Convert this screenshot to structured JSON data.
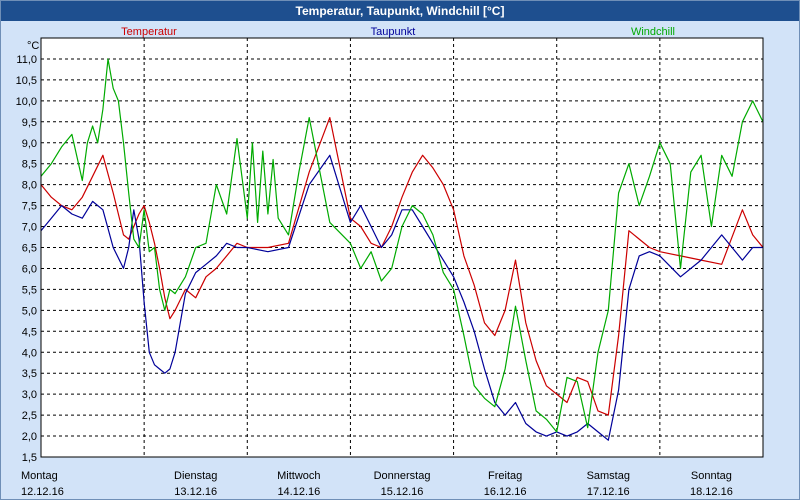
{
  "window": {
    "title": "Temperatur, Taupunkt, Windchill [°C]"
  },
  "chart_data": {
    "type": "line",
    "title": "Temperatur, Taupunkt, Windchill [°C]",
    "ylabel": "°C",
    "xlabel": "",
    "ylim": [
      1.5,
      11.5
    ],
    "xlim": [
      0,
      7
    ],
    "grid": true,
    "legend_placement": "top",
    "y_ticks": [
      "1,5",
      "2,0",
      "2,5",
      "3,0",
      "3,5",
      "4,0",
      "4,5",
      "5,0",
      "5,5",
      "6,0",
      "6,5",
      "7,0",
      "7,5",
      "8,0",
      "8,5",
      "9,0",
      "9,5",
      "10,0",
      "10,5",
      "11,0"
    ],
    "x_days": [
      {
        "day": "Montag",
        "date": "12.12.16"
      },
      {
        "day": "Dienstag",
        "date": "13.12.16"
      },
      {
        "day": "Mittwoch",
        "date": "14.12.16"
      },
      {
        "day": "Donnerstag",
        "date": "15.12.16"
      },
      {
        "day": "Freitag",
        "date": "16.12.16"
      },
      {
        "day": "Samstag",
        "date": "17.12.16"
      },
      {
        "day": "Sonntag",
        "date": "18.12.16"
      }
    ],
    "series": [
      {
        "name": "Temperatur",
        "color": "#cc0000",
        "x": [
          0,
          0.1,
          0.2,
          0.3,
          0.4,
          0.5,
          0.6,
          0.7,
          0.8,
          0.85,
          0.9,
          0.95,
          1.0,
          1.05,
          1.1,
          1.15,
          1.2,
          1.25,
          1.3,
          1.4,
          1.5,
          1.6,
          1.7,
          1.8,
          1.9,
          2.0,
          2.2,
          2.4,
          2.6,
          2.8,
          3.0,
          3.1,
          3.2,
          3.3,
          3.4,
          3.5,
          3.6,
          3.7,
          3.8,
          3.9,
          4.0,
          4.1,
          4.2,
          4.3,
          4.4,
          4.5,
          4.6,
          4.7,
          4.8,
          4.9,
          5.0,
          5.1,
          5.2,
          5.3,
          5.4,
          5.5,
          5.6,
          5.7,
          5.8,
          5.9,
          6.0,
          6.2,
          6.4,
          6.6,
          6.8,
          6.9,
          7.0
        ],
        "values": [
          8.0,
          7.7,
          7.5,
          7.4,
          7.7,
          8.2,
          8.7,
          7.8,
          6.8,
          6.7,
          7.0,
          7.3,
          7.5,
          7.1,
          6.6,
          6.0,
          5.3,
          4.8,
          5.0,
          5.5,
          5.3,
          5.8,
          6.0,
          6.3,
          6.6,
          6.5,
          6.5,
          6.6,
          8.3,
          9.6,
          7.2,
          7.0,
          6.6,
          6.5,
          7.0,
          7.7,
          8.3,
          8.7,
          8.4,
          8.0,
          7.4,
          6.3,
          5.6,
          4.7,
          4.4,
          5.0,
          6.2,
          4.7,
          3.8,
          3.2,
          3.0,
          2.8,
          3.4,
          3.3,
          2.6,
          2.5,
          4.4,
          6.9,
          6.7,
          6.5,
          6.4,
          6.3,
          6.2,
          6.1,
          7.4,
          6.8,
          6.5
        ]
      },
      {
        "name": "Taupunkt",
        "color": "#000099",
        "x": [
          0,
          0.1,
          0.2,
          0.3,
          0.4,
          0.5,
          0.6,
          0.7,
          0.8,
          0.85,
          0.9,
          0.95,
          1.0,
          1.05,
          1.1,
          1.15,
          1.2,
          1.25,
          1.3,
          1.4,
          1.5,
          1.6,
          1.7,
          1.8,
          1.9,
          2.0,
          2.2,
          2.4,
          2.6,
          2.8,
          3.0,
          3.1,
          3.2,
          3.3,
          3.4,
          3.5,
          3.6,
          3.7,
          3.8,
          3.9,
          4.0,
          4.1,
          4.2,
          4.3,
          4.4,
          4.5,
          4.6,
          4.7,
          4.8,
          4.9,
          5.0,
          5.1,
          5.2,
          5.3,
          5.4,
          5.5,
          5.6,
          5.7,
          5.8,
          5.9,
          6.0,
          6.2,
          6.4,
          6.6,
          6.8,
          6.9,
          7.0
        ],
        "values": [
          6.9,
          7.2,
          7.5,
          7.3,
          7.2,
          7.6,
          7.4,
          6.5,
          6.0,
          6.5,
          7.4,
          6.7,
          5.2,
          4.0,
          3.7,
          3.6,
          3.5,
          3.6,
          4.0,
          5.4,
          5.9,
          6.1,
          6.3,
          6.6,
          6.5,
          6.5,
          6.4,
          6.5,
          8.0,
          8.7,
          7.1,
          7.5,
          7.0,
          6.5,
          6.8,
          7.4,
          7.4,
          7.0,
          6.6,
          6.2,
          5.8,
          5.2,
          4.5,
          3.6,
          2.8,
          2.5,
          2.8,
          2.3,
          2.1,
          2.0,
          2.1,
          2.0,
          2.1,
          2.3,
          2.1,
          1.9,
          3.1,
          5.5,
          6.3,
          6.4,
          6.3,
          5.8,
          6.2,
          6.8,
          6.2,
          6.5,
          6.5
        ]
      },
      {
        "name": "Windchill",
        "color": "#00aa00",
        "x": [
          0,
          0.1,
          0.2,
          0.3,
          0.4,
          0.45,
          0.5,
          0.55,
          0.6,
          0.65,
          0.7,
          0.75,
          0.8,
          0.85,
          0.9,
          0.95,
          1.0,
          1.05,
          1.1,
          1.15,
          1.2,
          1.25,
          1.3,
          1.4,
          1.5,
          1.6,
          1.7,
          1.8,
          1.9,
          2.0,
          2.05,
          2.1,
          2.15,
          2.2,
          2.25,
          2.3,
          2.4,
          2.5,
          2.6,
          2.8,
          3.0,
          3.1,
          3.2,
          3.3,
          3.4,
          3.5,
          3.6,
          3.7,
          3.8,
          3.9,
          4.0,
          4.1,
          4.2,
          4.3,
          4.4,
          4.5,
          4.6,
          4.7,
          4.8,
          4.9,
          5.0,
          5.1,
          5.2,
          5.3,
          5.4,
          5.5,
          5.6,
          5.7,
          5.8,
          5.9,
          6.0,
          6.1,
          6.2,
          6.3,
          6.4,
          6.5,
          6.6,
          6.7,
          6.8,
          6.9,
          7.0
        ],
        "values": [
          8.2,
          8.5,
          8.9,
          9.2,
          8.1,
          9.0,
          9.4,
          9.0,
          9.8,
          11.0,
          10.3,
          10.0,
          9.0,
          7.8,
          6.7,
          6.5,
          7.4,
          6.4,
          6.5,
          5.5,
          5.0,
          5.5,
          5.4,
          5.8,
          6.5,
          6.6,
          8.0,
          7.3,
          9.1,
          7.2,
          9.0,
          7.1,
          8.8,
          7.3,
          8.6,
          7.2,
          6.8,
          8.3,
          9.6,
          7.1,
          6.6,
          6.0,
          6.4,
          5.7,
          6.0,
          7.0,
          7.5,
          7.3,
          6.8,
          5.9,
          5.5,
          4.4,
          3.2,
          2.9,
          2.7,
          3.6,
          5.1,
          3.8,
          2.6,
          2.4,
          2.1,
          3.4,
          3.3,
          2.2,
          4.0,
          5.0,
          7.8,
          8.5,
          7.5,
          8.2,
          9.0,
          8.5,
          6.0,
          8.3,
          8.7,
          7.0,
          8.7,
          8.2,
          9.5,
          10.0,
          9.5
        ]
      }
    ]
  }
}
